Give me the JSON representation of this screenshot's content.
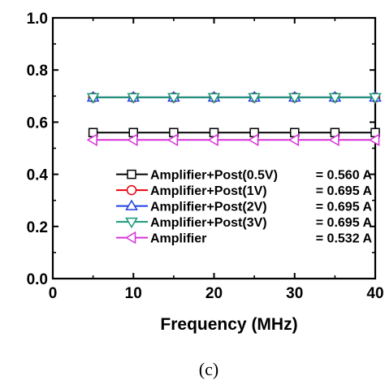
{
  "chart_data": {
    "type": "line",
    "xlabel": "Frequency (MHz)",
    "ylabel": "",
    "xlim": [
      0,
      40
    ],
    "ylim": [
      0.0,
      1.0
    ],
    "x_ticks": [
      "0",
      "10",
      "20",
      "30",
      "40"
    ],
    "y_ticks": [
      "0.0",
      "0.2",
      "0.4",
      "0.6",
      "0.8",
      "1.0"
    ],
    "x": [
      5,
      10,
      15,
      20,
      25,
      30,
      35,
      40
    ],
    "grid": false,
    "legend_position": "bottom-right",
    "series": [
      {
        "name": "Amplifier+Post(0.5V)",
        "value_label": "= 0.560 A",
        "color": "#000000",
        "marker": "square",
        "values": [
          0.56,
          0.56,
          0.56,
          0.56,
          0.56,
          0.56,
          0.56,
          0.56
        ]
      },
      {
        "name": "Amplifier+Post(1V)",
        "value_label": "= 0.695 A",
        "color": "#e8000b",
        "marker": "circle",
        "values": [
          0.695,
          0.695,
          0.695,
          0.695,
          0.695,
          0.695,
          0.695,
          0.695
        ]
      },
      {
        "name": "Amplifier+Post(2V)",
        "value_label": "= 0.695 A",
        "color": "#1f3fe0",
        "marker": "triangle-up",
        "values": [
          0.695,
          0.695,
          0.695,
          0.695,
          0.695,
          0.695,
          0.695,
          0.695
        ]
      },
      {
        "name": "Amplifier+Post(3V)",
        "value_label": "= 0.695 A",
        "color": "#1a9a7a",
        "marker": "triangle-down",
        "values": [
          0.695,
          0.695,
          0.695,
          0.695,
          0.695,
          0.695,
          0.695,
          0.695
        ]
      },
      {
        "name": "Amplifier",
        "value_label": "= 0.532 A",
        "color": "#d633d6",
        "marker": "triangle-left",
        "values": [
          0.532,
          0.532,
          0.532,
          0.532,
          0.532,
          0.532,
          0.532,
          0.532
        ]
      }
    ]
  },
  "caption": "(c)"
}
